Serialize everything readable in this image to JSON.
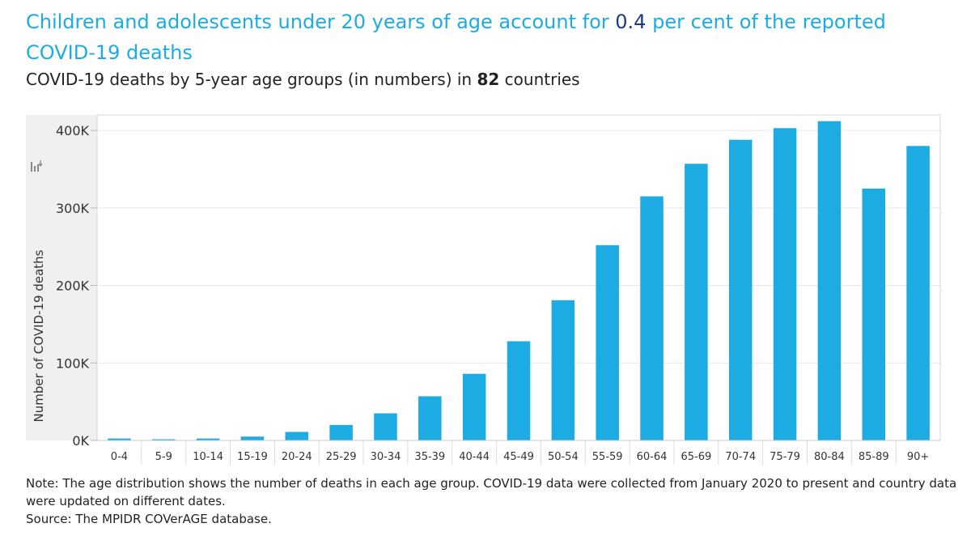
{
  "header": {
    "title_part1": "Children and adolescents under 20 years of age account for ",
    "title_highlight": "0.4",
    "title_part2": " per cent of the reported COVID-19 deaths",
    "subtitle_part1": "COVID-19 deaths by 5-year age groups (in numbers) in ",
    "subtitle_count": "82",
    "subtitle_part2": " countries"
  },
  "chart_data": {
    "type": "bar",
    "title": "",
    "xlabel": "",
    "ylabel": "Number of COVID-19 deaths",
    "ylim": [
      0,
      420000
    ],
    "yticks": [
      0,
      100000,
      200000,
      300000,
      400000
    ],
    "ytick_labels": [
      "0K",
      "100K",
      "200K",
      "300K",
      "400K"
    ],
    "categories": [
      "0-4",
      "5-9",
      "10-14",
      "15-19",
      "20-24",
      "25-29",
      "30-34",
      "35-39",
      "40-44",
      "45-49",
      "50-54",
      "55-59",
      "60-64",
      "65-69",
      "70-74",
      "75-79",
      "80-84",
      "85-89",
      "90+"
    ],
    "values": [
      2500,
      1500,
      2500,
      5000,
      11000,
      20000,
      35000,
      57000,
      86000,
      128000,
      181000,
      252000,
      315000,
      357000,
      388000,
      403000,
      412000,
      325000,
      380000
    ],
    "bar_color": "#1CABE2",
    "sort_icon": "sort-icon"
  },
  "footer": {
    "note_label": "Note",
    "note_text_line1": ": The age distribution shows the number of deaths in each age group. COVID-19 data were collected from January 2020 to present and country data",
    "note_text_line2": "were updated on different dates.",
    "source_label": "Source",
    "source_text": ": The MPIDR COVerAGE database."
  }
}
